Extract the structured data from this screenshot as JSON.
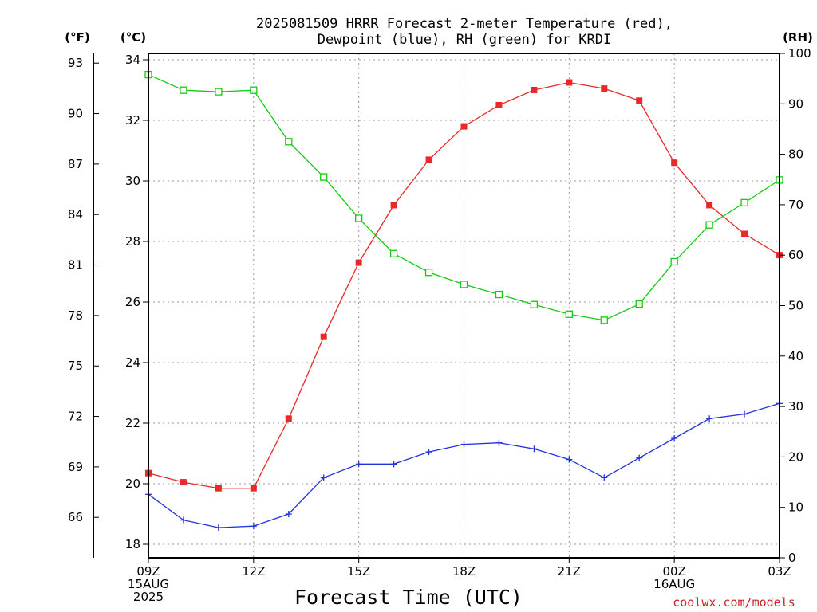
{
  "chart_data": {
    "type": "line",
    "title_lines": [
      "2025081509 HRRR Forecast 2-meter Temperature (red),",
      "Dewpoint (blue), RH (green) for KRDI"
    ],
    "xlabel": "Forecast Time (UTC)",
    "credit": "coolwx.com/models",
    "colors": {
      "temperature": "#e8282a",
      "dewpoint": "#2233dd",
      "rh": "#11cc11",
      "grid": "#999999"
    },
    "unit_labels": {
      "fahrenheit": "(°F)",
      "celsius": "(°C)",
      "rh": "(RH)"
    },
    "x": [
      "09Z",
      "10Z",
      "11Z",
      "12Z",
      "13Z",
      "14Z",
      "15Z",
      "16Z",
      "17Z",
      "18Z",
      "19Z",
      "20Z",
      "21Z",
      "22Z",
      "23Z",
      "00Z",
      "01Z",
      "02Z",
      "03Z"
    ],
    "x_tick_labels": [
      {
        "index": 0,
        "lines": [
          "09Z",
          "15AUG",
          "2025"
        ]
      },
      {
        "index": 3,
        "lines": [
          "12Z"
        ]
      },
      {
        "index": 6,
        "lines": [
          "15Z"
        ]
      },
      {
        "index": 9,
        "lines": [
          "18Z"
        ]
      },
      {
        "index": 12,
        "lines": [
          "21Z"
        ]
      },
      {
        "index": 15,
        "lines": [
          "00Z",
          "16AUG"
        ]
      },
      {
        "index": 18,
        "lines": [
          "03Z"
        ]
      }
    ],
    "ylim_celsius": [
      17.4,
      34.2
    ],
    "y_ticks_celsius": [
      18,
      20,
      22,
      24,
      26,
      28,
      30,
      32,
      34
    ],
    "y_ticks_fahrenheit": [
      66,
      69,
      72,
      75,
      78,
      81,
      84,
      87,
      90,
      93
    ],
    "ylim_rh": [
      0,
      100
    ],
    "y_ticks_rh": [
      0,
      10,
      20,
      30,
      40,
      50,
      60,
      70,
      80,
      90,
      100
    ],
    "grid": true,
    "series": [
      {
        "name": "Temperature",
        "axis": "celsius",
        "marker": "filled-square",
        "values": [
          20.35,
          20.05,
          19.85,
          19.85,
          22.15,
          24.85,
          27.3,
          29.2,
          30.7,
          31.8,
          32.5,
          33.0,
          33.25,
          33.05,
          32.65,
          30.6,
          29.2,
          28.25,
          27.55
        ]
      },
      {
        "name": "Dewpoint",
        "axis": "celsius",
        "marker": "plus",
        "values": [
          19.65,
          18.8,
          18.55,
          18.6,
          19.0,
          20.2,
          20.65,
          20.65,
          21.05,
          21.3,
          21.35,
          21.15,
          20.8,
          20.2,
          20.85,
          21.5,
          22.15,
          22.3,
          22.65
        ]
      },
      {
        "name": "RH",
        "axis": "rh",
        "marker": "open-square",
        "values": [
          95.8,
          92.7,
          92.4,
          92.7,
          82.5,
          75.5,
          67.3,
          60.3,
          56.6,
          54.2,
          52.2,
          50.2,
          48.3,
          47.1,
          50.3,
          58.7,
          66.0,
          70.4,
          74.9
        ]
      }
    ]
  }
}
